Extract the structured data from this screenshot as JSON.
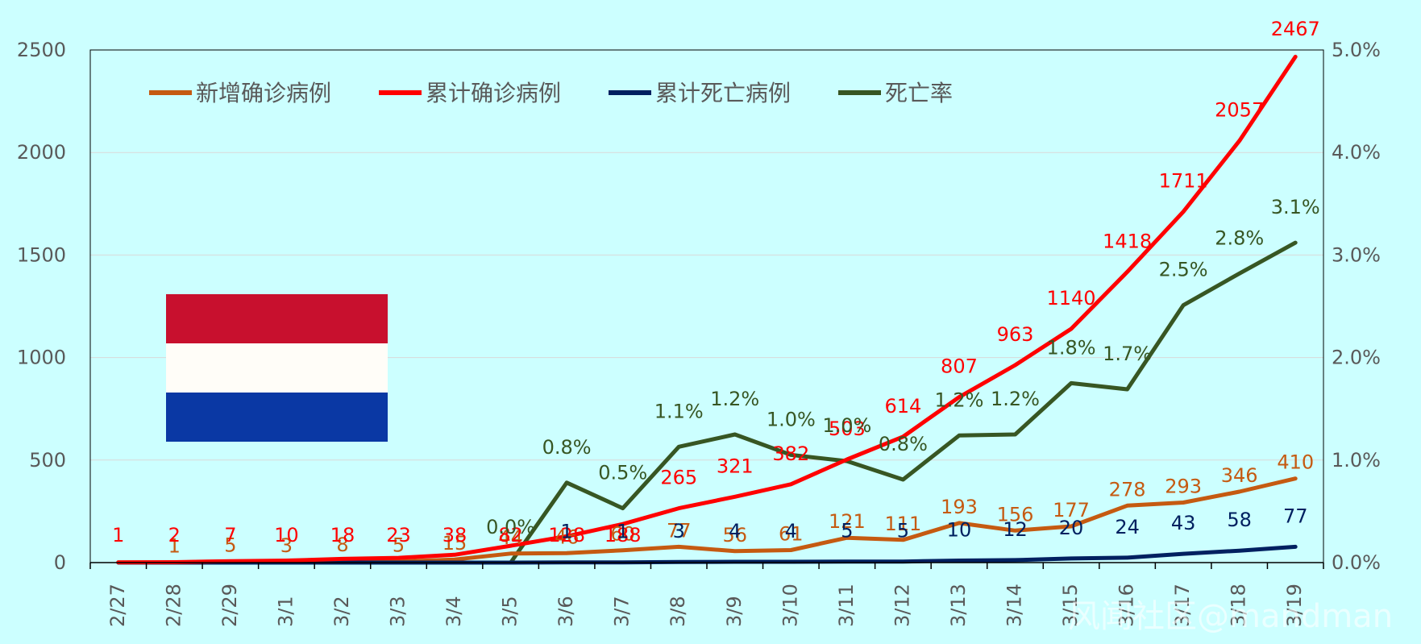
{
  "chart_data": {
    "type": "line",
    "categories": [
      "2/27",
      "2/28",
      "2/29",
      "3/1",
      "3/2",
      "3/3",
      "3/4",
      "3/5",
      "3/6",
      "3/7",
      "3/8",
      "3/9",
      "3/10",
      "3/11",
      "3/12",
      "3/13",
      "3/14",
      "3/15",
      "3/16",
      "3/17",
      "3/18",
      "3/19"
    ],
    "y_left": {
      "min": 0,
      "max": 2500,
      "step": 500,
      "ticks": [
        "0",
        "500",
        "1000",
        "1500",
        "2000",
        "2500"
      ]
    },
    "y_right": {
      "min": 0,
      "max": 5,
      "step": 1,
      "ticks": [
        "0.0%",
        "1.0%",
        "2.0%",
        "3.0%",
        "4.0%",
        "5.0%"
      ]
    },
    "series": [
      {
        "name": "新增确诊病例",
        "color": "#c55a11",
        "axis": "left",
        "values": [
          1,
          1,
          5,
          3,
          8,
          5,
          15,
          44,
          46,
          60,
          77,
          56,
          61,
          121,
          111,
          193,
          156,
          177,
          278,
          293,
          346,
          410
        ],
        "labels": [
          "",
          "1",
          "5",
          "3",
          "8",
          "5",
          "15",
          "44",
          "46",
          "60",
          "77",
          "56",
          "61",
          "121",
          "111",
          "193",
          "156",
          "177",
          "278",
          "293",
          "346",
          "410"
        ]
      },
      {
        "name": "累计确诊病例",
        "color": "#ff0000",
        "axis": "left",
        "values": [
          1,
          2,
          7,
          10,
          18,
          23,
          38,
          82,
          128,
          188,
          265,
          321,
          382,
          503,
          614,
          807,
          963,
          1140,
          1418,
          1711,
          2057,
          2467
        ],
        "labels": [
          "1",
          "2",
          "7",
          "10",
          "18",
          "23",
          "38",
          "82",
          "128",
          "188",
          "265",
          "321",
          "382",
          "503",
          "614",
          "807",
          "963",
          "1140",
          "1418",
          "1711",
          "2057",
          "2467"
        ]
      },
      {
        "name": "累计死亡病例",
        "color": "#002060",
        "axis": "left",
        "values": [
          0,
          0,
          0,
          0,
          0,
          0,
          0,
          0,
          1,
          1,
          3,
          4,
          4,
          5,
          5,
          10,
          12,
          20,
          24,
          43,
          58,
          77
        ],
        "labels": [
          "",
          "",
          "",
          "",
          "",
          "",
          "",
          "",
          "1",
          "1",
          "3",
          "4",
          "4",
          "5",
          "5",
          "10",
          "12",
          "20",
          "24",
          "43",
          "58",
          "77"
        ]
      },
      {
        "name": "死亡率",
        "color": "#375623",
        "axis": "right",
        "values": [
          null,
          null,
          null,
          null,
          null,
          null,
          null,
          0.0,
          0.78,
          0.53,
          1.13,
          1.25,
          1.05,
          0.99,
          0.81,
          1.24,
          1.25,
          1.75,
          1.69,
          2.51,
          2.82,
          3.12
        ],
        "labels": [
          "",
          "",
          "",
          "",
          "",
          "",
          "",
          "0.0%",
          "0.8%",
          "0.5%",
          "1.1%",
          "1.2%",
          "1.0%",
          "1.0%",
          "0.8%",
          "1.2%",
          "1.2%",
          "1.8%",
          "1.7%",
          "2.5%",
          "2.8%",
          "3.1%"
        ]
      }
    ],
    "legend_position": "top-left",
    "flag_colors": [
      "#c8102e",
      "#fffdf8",
      "#0a38a4"
    ],
    "watermark": "风闻社区@mandman"
  }
}
